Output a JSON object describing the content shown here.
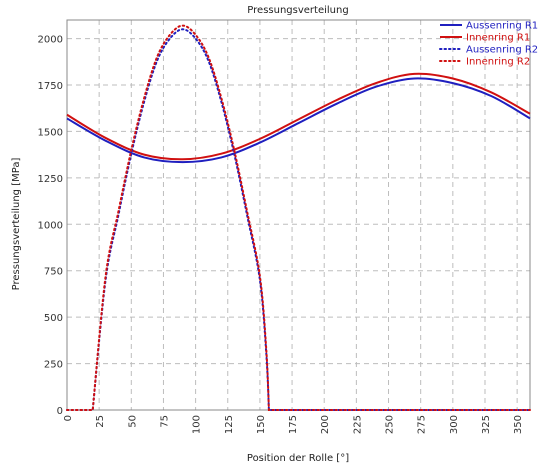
{
  "chart_data": {
    "type": "line",
    "title": "Pressungsverteilung",
    "xlabel": "Position der Rolle [°]",
    "ylabel": "Pressungsverteilung [MPa]",
    "xlim": [
      0,
      360
    ],
    "ylim": [
      0,
      2100
    ],
    "xticks": [
      0,
      25,
      50,
      75,
      100,
      125,
      150,
      175,
      200,
      225,
      250,
      275,
      300,
      325,
      350
    ],
    "yticks": [
      0,
      250,
      500,
      750,
      1000,
      1250,
      1500,
      1750,
      2000
    ],
    "grid": true,
    "legend_position": "top-right",
    "series": [
      {
        "name": "Aussenring R1",
        "color": "#1f1fbf",
        "style": "solid",
        "x": [
          0,
          30,
          60,
          90,
          120,
          150,
          180,
          210,
          240,
          270,
          300,
          330,
          360
        ],
        "y": [
          1570,
          1450,
          1360,
          1335,
          1360,
          1440,
          1545,
          1650,
          1740,
          1785,
          1760,
          1690,
          1570
        ]
      },
      {
        "name": "Innenring R1",
        "color": "#d01010",
        "style": "solid",
        "x": [
          0,
          30,
          60,
          90,
          120,
          150,
          180,
          210,
          240,
          270,
          300,
          330,
          360
        ],
        "y": [
          1590,
          1465,
          1375,
          1350,
          1380,
          1460,
          1565,
          1670,
          1760,
          1810,
          1785,
          1710,
          1595
        ]
      },
      {
        "name": "Aussenring R2",
        "color": "#1f1fbf",
        "style": "dotted",
        "x": [
          0,
          20,
          30,
          40,
          50,
          60,
          70,
          80,
          90,
          100,
          110,
          120,
          130,
          140,
          150,
          155,
          157,
          200,
          250,
          300,
          360
        ],
        "y": [
          0,
          0,
          700,
          1050,
          1380,
          1660,
          1880,
          2000,
          2050,
          2000,
          1880,
          1660,
          1380,
          1050,
          700,
          300,
          0,
          0,
          0,
          0,
          0
        ]
      },
      {
        "name": "Innenring R2",
        "color": "#d01010",
        "style": "dotted",
        "x": [
          0,
          20,
          30,
          40,
          50,
          60,
          70,
          80,
          90,
          100,
          110,
          120,
          130,
          140,
          150,
          155,
          157,
          200,
          250,
          300,
          360
        ],
        "y": [
          0,
          0,
          720,
          1070,
          1400,
          1680,
          1900,
          2020,
          2070,
          2020,
          1900,
          1680,
          1400,
          1070,
          720,
          320,
          0,
          0,
          0,
          0,
          0
        ]
      }
    ]
  }
}
